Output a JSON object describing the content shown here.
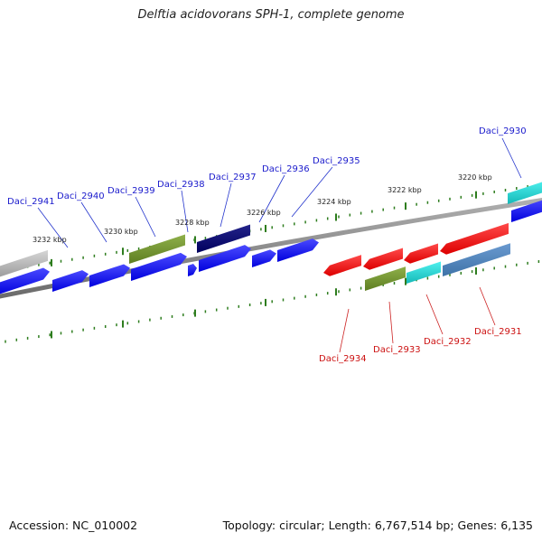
{
  "title": "Delftia acidovorans SPH-1, complete genome",
  "footer": {
    "accession": "Accession: NC_010002",
    "summary": "Topology: circular; Length: 6,767,514 bp; Genes: 6,135"
  },
  "colors": {
    "forward_label": "#1a1acc",
    "reverse_label": "#cc1111",
    "tick": "#2e7d1e",
    "backbone": "#8a8a8a"
  },
  "ticks": [
    {
      "label": "3232 kbp"
    },
    {
      "label": "3230 kbp"
    },
    {
      "label": "3228 kbp"
    },
    {
      "label": "3226 kbp"
    },
    {
      "label": "3224 kbp"
    },
    {
      "label": "3222 kbp"
    },
    {
      "label": "3220 kbp"
    }
  ],
  "forward_genes": [
    {
      "label": "Daci_2941"
    },
    {
      "label": "Daci_2940"
    },
    {
      "label": "Daci_2939"
    },
    {
      "label": "Daci_2938"
    },
    {
      "label": "Daci_2937"
    },
    {
      "label": "Daci_2936"
    },
    {
      "label": "Daci_2935"
    },
    {
      "label": "Daci_2930"
    }
  ],
  "reverse_genes": [
    {
      "label": "Daci_2934"
    },
    {
      "label": "Daci_2933"
    },
    {
      "label": "Daci_2932"
    },
    {
      "label": "Daci_2931"
    }
  ]
}
